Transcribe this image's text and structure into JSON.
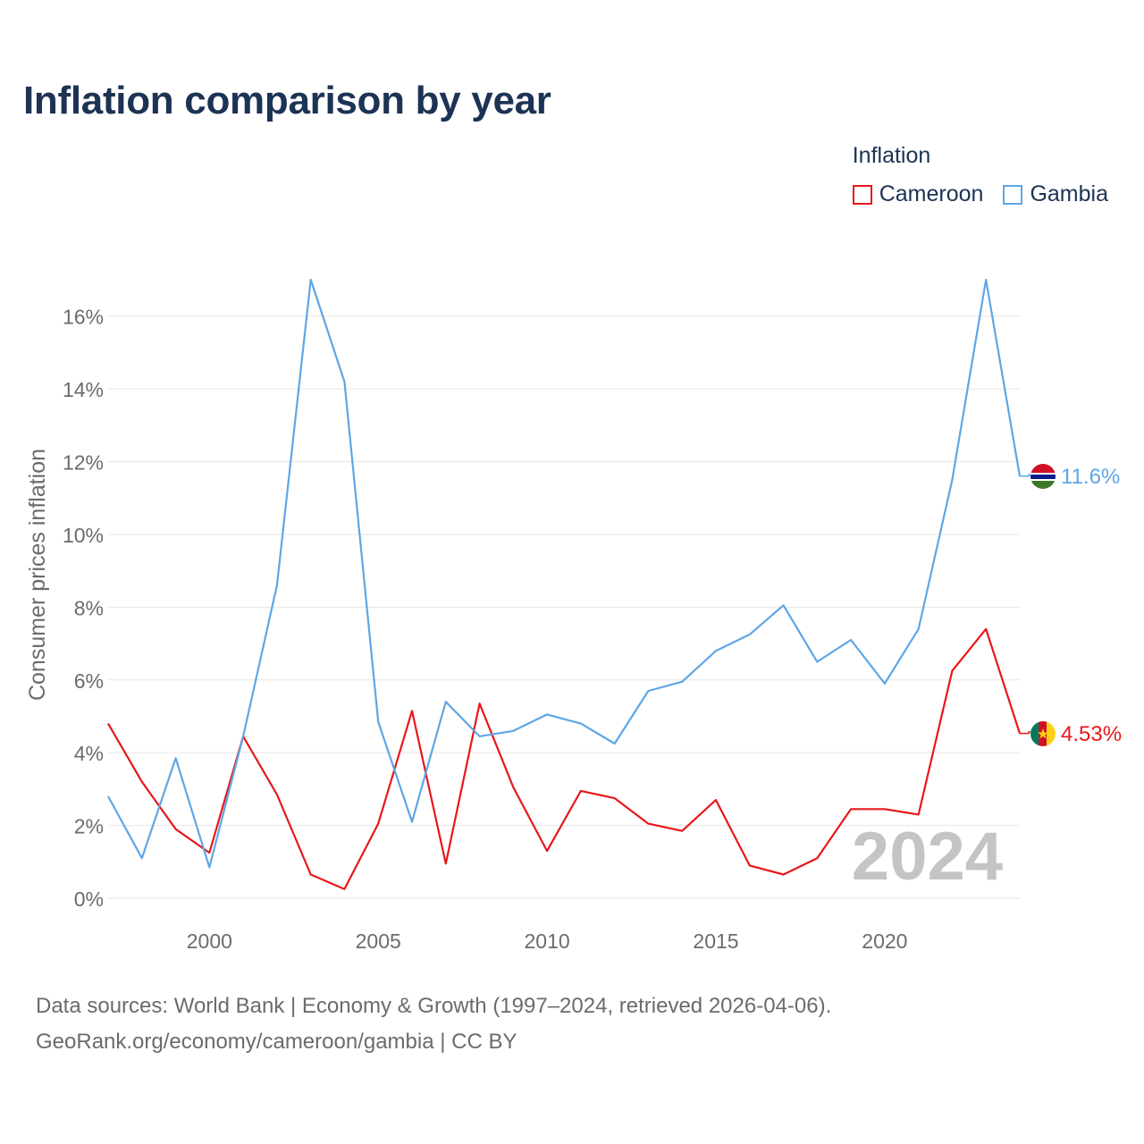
{
  "title": "Inflation comparison by year",
  "legend": {
    "title": "Inflation",
    "items": [
      {
        "label": "Cameroon",
        "color": "#e8171a"
      },
      {
        "label": "Gambia",
        "color": "#5ea6e6"
      }
    ]
  },
  "chart_data": {
    "type": "line",
    "title": "Inflation comparison by year",
    "xlabel": "",
    "ylabel": "Consumer prices inflation",
    "xlim": [
      1997,
      2024
    ],
    "ylim": [
      0,
      17
    ],
    "x_ticks": [
      2000,
      2005,
      2010,
      2015,
      2020
    ],
    "y_ticks": [
      0,
      2,
      4,
      6,
      8,
      10,
      12,
      14,
      16
    ],
    "y_tick_labels": [
      "0%",
      "2%",
      "4%",
      "6%",
      "8%",
      "10%",
      "12%",
      "14%",
      "16%"
    ],
    "grid": true,
    "legend_position": "top-right",
    "x": [
      1997,
      1998,
      1999,
      2000,
      2001,
      2002,
      2003,
      2004,
      2005,
      2006,
      2007,
      2008,
      2009,
      2010,
      2011,
      2012,
      2013,
      2014,
      2015,
      2016,
      2017,
      2018,
      2019,
      2020,
      2021,
      2022,
      2023,
      2024
    ],
    "series": [
      {
        "name": "Cameroon",
        "color": "#e8171a",
        "end_label": "4.53%",
        "flag": "cameroon-flag",
        "values": [
          4.8,
          3.2,
          1.9,
          1.25,
          4.45,
          2.85,
          0.65,
          0.25,
          2.05,
          5.15,
          0.95,
          5.35,
          3.05,
          1.3,
          2.95,
          2.75,
          2.05,
          1.85,
          2.7,
          0.9,
          0.65,
          1.1,
          2.45,
          2.45,
          2.3,
          6.25,
          7.4,
          4.53
        ]
      },
      {
        "name": "Gambia",
        "color": "#5ea6e6",
        "end_label": "11.6%",
        "flag": "gambia-flag",
        "values": [
          2.8,
          1.1,
          3.85,
          0.85,
          4.45,
          8.6,
          17.0,
          14.2,
          4.85,
          2.1,
          5.4,
          4.45,
          4.6,
          5.05,
          4.8,
          4.25,
          5.7,
          5.95,
          6.8,
          7.25,
          8.05,
          6.5,
          7.1,
          5.9,
          7.4,
          11.5,
          17.0,
          11.6
        ]
      }
    ],
    "watermark_year": "2024"
  },
  "footer": {
    "line1": "Data sources: World Bank | Economy & Growth (1997–2024, retrieved 2026-04-06).",
    "line2": "GeoRank.org/economy/cameroon/gambia | CC BY"
  }
}
